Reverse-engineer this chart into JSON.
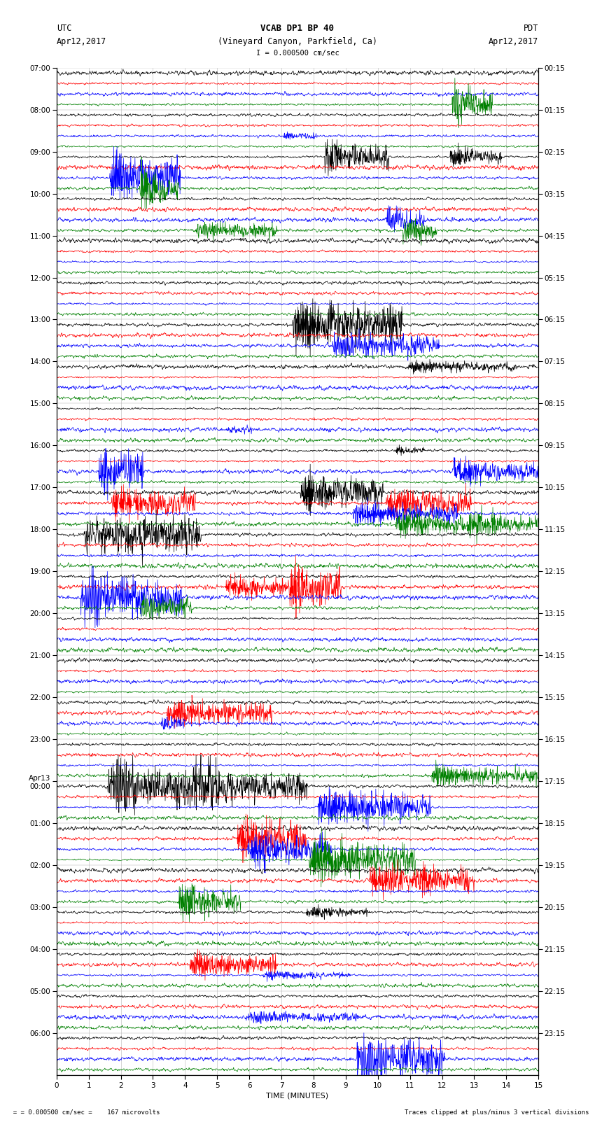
{
  "title_line1": "VCAB DP1 BP 40",
  "title_line2": "(Vineyard Canyon, Parkfield, Ca)",
  "scale_label": "I = 0.000500 cm/sec",
  "left_date": "Apr12,2017",
  "right_date": "Apr12,2017",
  "left_tz": "UTC",
  "right_tz": "PDT",
  "xlabel": "TIME (MINUTES)",
  "footer_left": "= 0.000500 cm/sec =    167 microvolts",
  "footer_right": "Traces clipped at plus/minus 3 vertical divisions",
  "utc_labels": [
    "07:00",
    "08:00",
    "09:00",
    "10:00",
    "11:00",
    "12:00",
    "13:00",
    "14:00",
    "15:00",
    "16:00",
    "17:00",
    "18:00",
    "19:00",
    "20:00",
    "21:00",
    "22:00",
    "23:00",
    "Apr13\n00:00",
    "01:00",
    "02:00",
    "03:00",
    "04:00",
    "05:00",
    "06:00"
  ],
  "pdt_labels": [
    "00:15",
    "01:15",
    "02:15",
    "03:15",
    "04:15",
    "05:15",
    "06:15",
    "07:15",
    "08:15",
    "09:15",
    "10:15",
    "11:15",
    "12:15",
    "13:15",
    "14:15",
    "15:15",
    "16:15",
    "17:15",
    "18:15",
    "19:15",
    "20:15",
    "21:15",
    "22:15",
    "23:15"
  ],
  "num_hours": 24,
  "traces_per_hour": 4,
  "colors": [
    "black",
    "red",
    "blue",
    "green"
  ],
  "bg_color": "#ffffff",
  "x_min": 0,
  "x_max": 15,
  "x_ticks": [
    0,
    1,
    2,
    3,
    4,
    5,
    6,
    7,
    8,
    9,
    10,
    11,
    12,
    13,
    14,
    15
  ],
  "seed": 42
}
